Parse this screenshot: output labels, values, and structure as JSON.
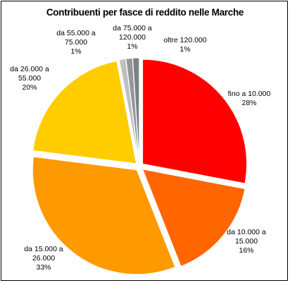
{
  "chart_data": {
    "type": "pie",
    "title": "Contribuenti per fasce di reddito nelle Marche",
    "slices": [
      {
        "label": [
          "fino a 10.000"
        ],
        "value": 28,
        "pct_label": "28%",
        "color": "#ff0000"
      },
      {
        "label": [
          "da 10.000 a",
          "15.000"
        ],
        "value": 16,
        "pct_label": "16%",
        "color": "#ff6600"
      },
      {
        "label": [
          "da 15.000 a",
          "26.000"
        ],
        "value": 33,
        "pct_label": "33%",
        "color": "#ff9900"
      },
      {
        "label": [
          "da 26.000 a",
          "55.000"
        ],
        "value": 20,
        "pct_label": "20%",
        "color": "#ffcc00"
      },
      {
        "label": [
          "da 55.000 a",
          "75.000"
        ],
        "value": 1,
        "pct_label": "1%",
        "color": "#c0c0c0"
      },
      {
        "label": [
          "da 75.000 a",
          "120.000"
        ],
        "value": 1,
        "pct_label": "1%",
        "color": "#969696"
      },
      {
        "label": [
          "oltre 120.000"
        ],
        "value": 1,
        "pct_label": "1%",
        "color": "#808080"
      }
    ]
  }
}
